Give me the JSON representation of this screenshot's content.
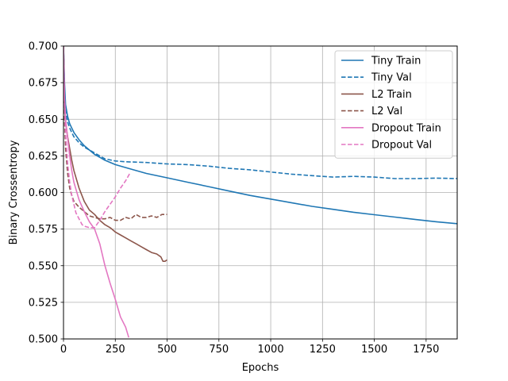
{
  "chart_data": {
    "type": "line",
    "title": "",
    "xlabel": "Epochs",
    "ylabel": "Binary Crossentropy",
    "xlim": [
      0,
      1900
    ],
    "ylim": [
      0.5,
      0.7
    ],
    "xticks": [
      0,
      250,
      500,
      750,
      1000,
      1250,
      1500,
      1750
    ],
    "xtick_labels": [
      "0",
      "250",
      "500",
      "750",
      "1000",
      "1250",
      "1500",
      "1750"
    ],
    "yticks": [
      0.5,
      0.525,
      0.55,
      0.575,
      0.6,
      0.625,
      0.65,
      0.675,
      0.7
    ],
    "ytick_labels": [
      "0.500",
      "0.525",
      "0.550",
      "0.575",
      "0.600",
      "0.625",
      "0.650",
      "0.675",
      "0.700"
    ],
    "grid": true,
    "legend_position": "top-right",
    "series": [
      {
        "name": "Tiny Train",
        "color": "#1f77b4",
        "dash": "solid",
        "x": [
          0,
          5,
          10,
          20,
          30,
          40,
          50,
          75,
          100,
          150,
          200,
          250,
          300,
          400,
          500,
          600,
          700,
          800,
          900,
          1000,
          1100,
          1200,
          1300,
          1400,
          1500,
          1600,
          1700,
          1800,
          1900
        ],
        "y": [
          0.7,
          0.675,
          0.66,
          0.652,
          0.647,
          0.644,
          0.641,
          0.636,
          0.632,
          0.626,
          0.622,
          0.619,
          0.617,
          0.613,
          0.61,
          0.607,
          0.604,
          0.601,
          0.598,
          0.5955,
          0.593,
          0.5905,
          0.5885,
          0.5865,
          0.5848,
          0.5832,
          0.5815,
          0.58,
          0.5787
        ]
      },
      {
        "name": "Tiny Val",
        "color": "#1f77b4",
        "dash": "dashed",
        "x": [
          0,
          5,
          10,
          20,
          30,
          40,
          50,
          75,
          100,
          150,
          200,
          250,
          300,
          400,
          500,
          600,
          700,
          800,
          900,
          1000,
          1100,
          1200,
          1300,
          1400,
          1500,
          1600,
          1700,
          1800,
          1900
        ],
        "y": [
          0.7,
          0.67,
          0.655,
          0.648,
          0.644,
          0.641,
          0.638,
          0.634,
          0.631,
          0.627,
          0.623,
          0.6215,
          0.621,
          0.6205,
          0.6195,
          0.619,
          0.618,
          0.6165,
          0.6155,
          0.614,
          0.6125,
          0.6115,
          0.6105,
          0.611,
          0.6105,
          0.6095,
          0.6095,
          0.6098,
          0.6095
        ]
      },
      {
        "name": "L2 Train",
        "color": "#8c564b",
        "dash": "solid",
        "x": [
          0,
          5,
          10,
          20,
          30,
          40,
          50,
          75,
          100,
          125,
          150,
          175,
          200,
          225,
          250,
          275,
          300,
          325,
          350,
          375,
          400,
          425,
          450,
          470,
          480,
          490,
          500
        ],
        "y": [
          0.7,
          0.66,
          0.648,
          0.638,
          0.63,
          0.622,
          0.615,
          0.603,
          0.594,
          0.588,
          0.585,
          0.581,
          0.578,
          0.576,
          0.573,
          0.571,
          0.569,
          0.567,
          0.565,
          0.563,
          0.561,
          0.559,
          0.558,
          0.556,
          0.553,
          0.553,
          0.554
        ]
      },
      {
        "name": "L2 Val",
        "color": "#8c564b",
        "dash": "dashed",
        "x": [
          0,
          5,
          10,
          20,
          30,
          40,
          50,
          75,
          100,
          125,
          150,
          175,
          200,
          225,
          250,
          275,
          300,
          325,
          350,
          375,
          400,
          425,
          450,
          475,
          500
        ],
        "y": [
          0.7,
          0.65,
          0.63,
          0.613,
          0.603,
          0.598,
          0.594,
          0.59,
          0.587,
          0.584,
          0.583,
          0.582,
          0.582,
          0.583,
          0.581,
          0.581,
          0.583,
          0.582,
          0.585,
          0.583,
          0.583,
          0.584,
          0.583,
          0.585,
          0.585
        ]
      },
      {
        "name": "Dropout Train",
        "color": "#e377c2",
        "dash": "solid",
        "x": [
          0,
          5,
          10,
          20,
          30,
          40,
          50,
          75,
          100,
          125,
          150,
          175,
          200,
          225,
          250,
          275,
          300,
          315
        ],
        "y": [
          0.7,
          0.665,
          0.65,
          0.637,
          0.625,
          0.615,
          0.607,
          0.595,
          0.587,
          0.58,
          0.575,
          0.565,
          0.55,
          0.538,
          0.527,
          0.515,
          0.508,
          0.501
        ]
      },
      {
        "name": "Dropout Val",
        "color": "#e377c2",
        "dash": "dashed",
        "x": [
          0,
          5,
          10,
          20,
          30,
          40,
          50,
          60,
          75,
          90,
          100,
          125,
          150,
          175,
          200,
          225,
          250,
          275,
          300,
          320
        ],
        "y": [
          0.7,
          0.66,
          0.64,
          0.62,
          0.607,
          0.598,
          0.592,
          0.586,
          0.582,
          0.578,
          0.577,
          0.576,
          0.576,
          0.581,
          0.587,
          0.592,
          0.597,
          0.603,
          0.608,
          0.613
        ]
      }
    ]
  }
}
